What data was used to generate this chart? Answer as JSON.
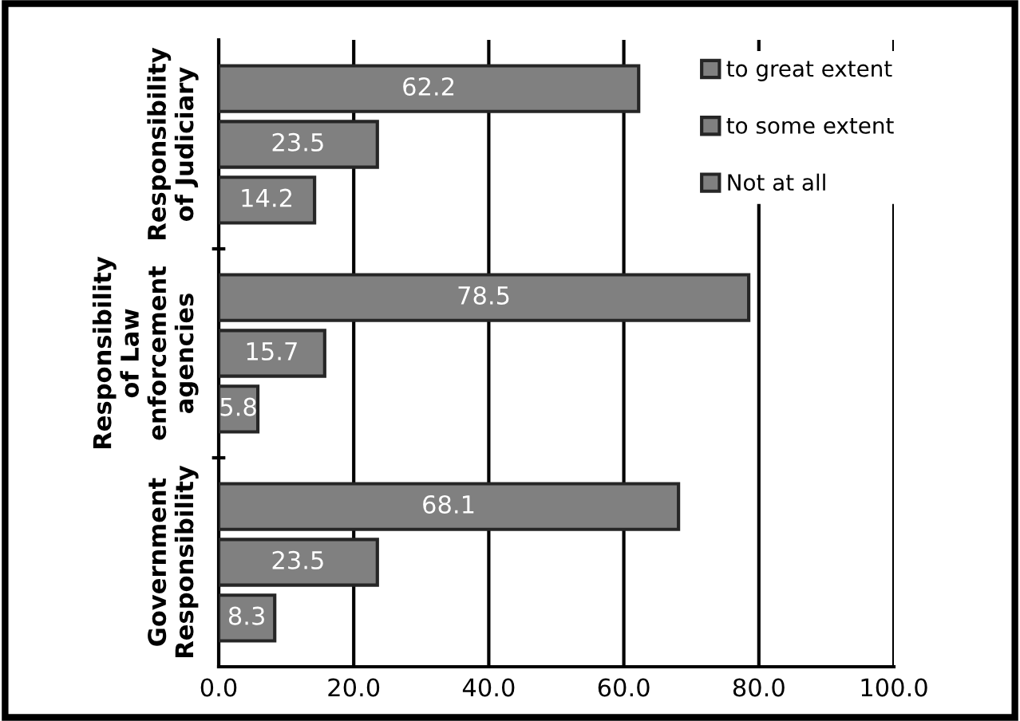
{
  "chart_data": {
    "type": "bar",
    "orientation": "horizontal",
    "categories": [
      "Responsibility\nof Judiciary",
      "Responsibility\nof Law\nenforcement\nagencies",
      "Government\nResponsibility"
    ],
    "series": [
      {
        "name": "to great extent",
        "color": "#808080",
        "values": [
          62.2,
          78.5,
          68.1
        ]
      },
      {
        "name": "to some extent",
        "color": "#808080",
        "values": [
          23.5,
          15.7,
          23.5
        ]
      },
      {
        "name": "Not at all",
        "color": "#808080",
        "values": [
          14.2,
          5.8,
          8.3
        ]
      }
    ],
    "xlim": [
      0,
      100
    ],
    "xticks": [
      {
        "value": 0,
        "label": "0.0"
      },
      {
        "value": 20,
        "label": "20.0"
      },
      {
        "value": 40,
        "label": "40.0"
      },
      {
        "value": 60,
        "label": "60.0"
      },
      {
        "value": 80,
        "label": "80.0"
      },
      {
        "value": 100,
        "label": "100.0"
      }
    ],
    "grid": "x",
    "legend": "top right",
    "data_labels": true
  }
}
